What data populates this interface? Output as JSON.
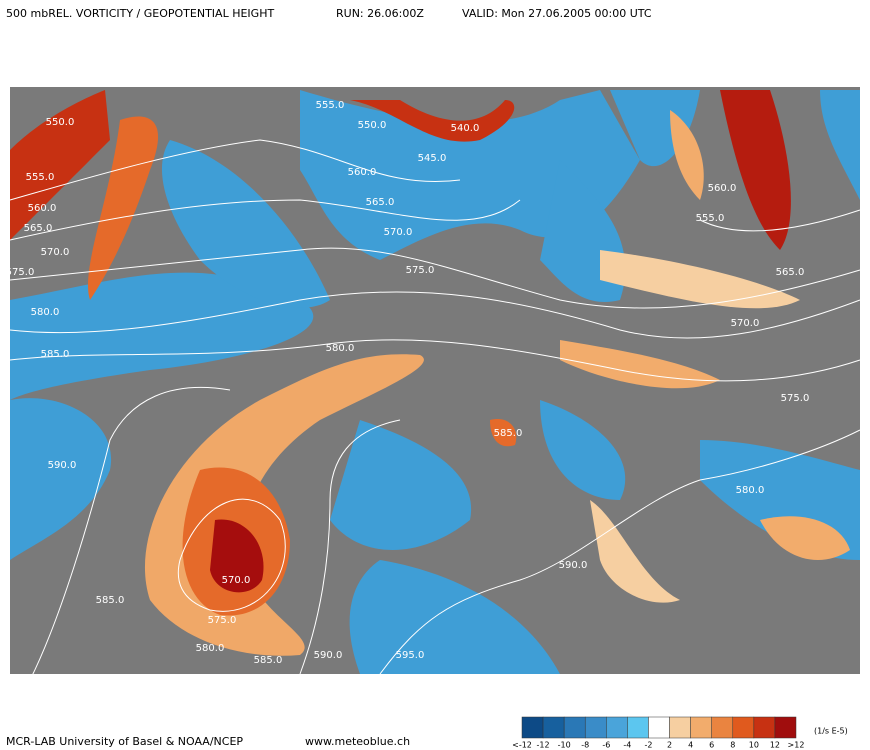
{
  "header": {
    "title": "500 mbREL. VORTICITY / GEOPOTENTIAL HEIGHT",
    "run": "RUN: 26.06:00Z",
    "valid": "VALID:  Mon 27.06.2005  00:00 UTC"
  },
  "footer": {
    "credit": "MCR-LAB University of Basel  &  NOAA/NCEP",
    "website": "www.meteoblue.ch"
  },
  "legend": {
    "unit": "(1/s E-5)",
    "labels": [
      "<-12",
      "-12",
      "-10",
      "-8",
      "-6",
      "-4",
      "-2",
      "2",
      "4",
      "6",
      "8",
      "10",
      "12",
      ">12"
    ],
    "colors": [
      "#0d4a86",
      "#17609e",
      "#2a78b6",
      "#3a8cc8",
      "#4aa4da",
      "#5cc6ef",
      "#ffffff",
      "#f6cfa1",
      "#f2ac6c",
      "#ea8440",
      "#e05a1e",
      "#c73112",
      "#a00d0d"
    ]
  },
  "contour_labels": [
    "555.0",
    "550.0",
    "540.0",
    "545.0",
    "560.0",
    "565.0",
    "570.0",
    "575.0",
    "580.0",
    "585.0",
    "580.0",
    "575.0",
    "570.0",
    "565.0",
    "560.0",
    "555.0",
    "550.0",
    "555.0",
    "560.0",
    "565.0",
    "570.0",
    "575.0",
    "580.0",
    "585.0",
    "590.0",
    "585.0",
    "570.0",
    "575.0",
    "580.0",
    "585.0",
    "590.0",
    "595.0",
    "590.0"
  ]
}
